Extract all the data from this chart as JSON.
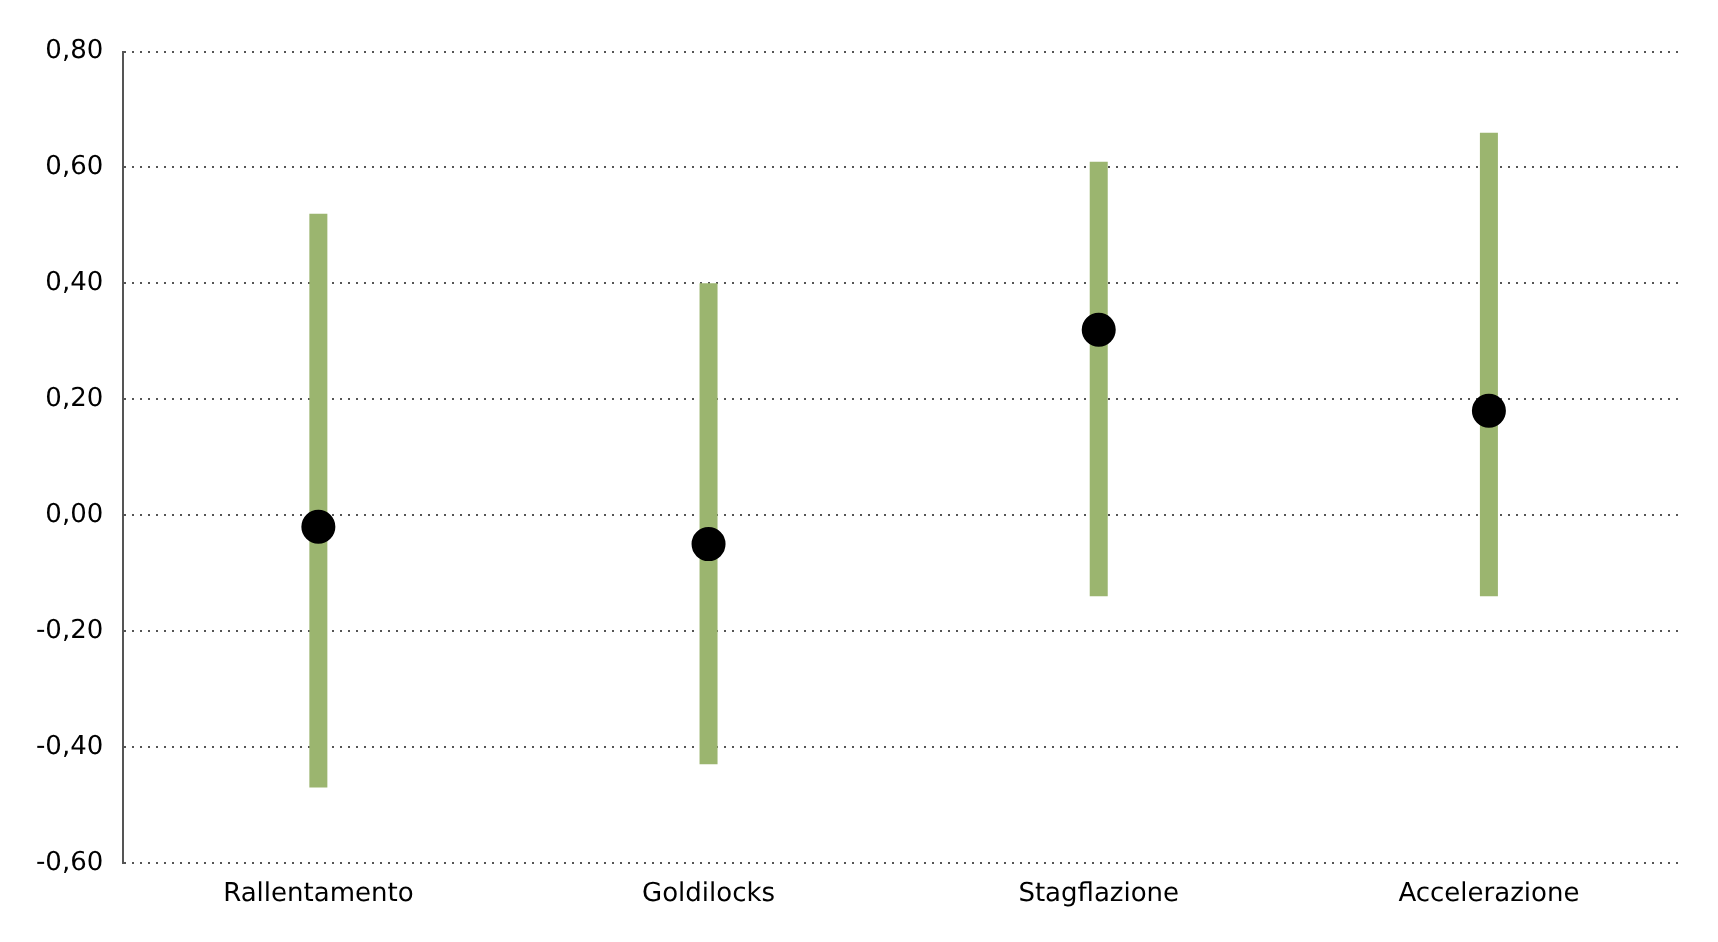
{
  "chart_data": {
    "type": "scatter",
    "categories": [
      "Rallentamento",
      "Goldilocks",
      "Stagflazione",
      "Accelerazione"
    ],
    "ylim": [
      -0.6,
      0.8
    ],
    "yticks": [
      {
        "value": -0.6,
        "label": "-0,60"
      },
      {
        "value": -0.4,
        "label": "-0,40"
      },
      {
        "value": -0.2,
        "label": "-0,20"
      },
      {
        "value": 0,
        "label": "0,00"
      },
      {
        "value": 0.2,
        "label": "0,20"
      },
      {
        "value": 0.4,
        "label": "0,40"
      },
      {
        "value": 0.6,
        "label": "0,60"
      },
      {
        "value": 0.8,
        "label": "0,80"
      }
    ],
    "grid": "y",
    "marker": "circle",
    "color": "#000000",
    "values": [
      -0.02,
      -0.05,
      0.32,
      0.18
    ],
    "errors": [
      [
        -0.47,
        0.52
      ],
      [
        -0.43,
        0.4
      ],
      [
        -0.14,
        0.61
      ],
      [
        -0.14,
        0.66
      ]
    ]
  }
}
